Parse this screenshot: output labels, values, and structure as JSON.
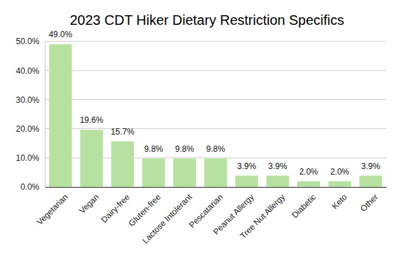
{
  "chart_data": {
    "type": "bar",
    "title": "2023 CDT Hiker Dietary Restriction Specifics",
    "categories": [
      "Vegetarian",
      "Vegan",
      "Dairy-free",
      "Gluten-free",
      "Lactose Intolerant",
      "Pescatarian",
      "Peanut Allergy",
      "Tree Nut Allergy",
      "Diabetic",
      "Keto",
      "Other"
    ],
    "values": [
      49.0,
      19.6,
      15.7,
      9.8,
      9.8,
      9.8,
      3.9,
      3.9,
      2.0,
      2.0,
      3.9
    ],
    "value_labels": [
      "49.0%",
      "19.6%",
      "15.7%",
      "9.8%",
      "9.8%",
      "9.8%",
      "3.9%",
      "3.9%",
      "2.0%",
      "2.0%",
      "3.9%"
    ],
    "color": "#b7e1a1",
    "ylim": [
      0,
      50
    ],
    "yticks": [
      {
        "value": 0,
        "label": "0.0%"
      },
      {
        "value": 10,
        "label": "10.0%"
      },
      {
        "value": 20,
        "label": "20.0%"
      },
      {
        "value": 30,
        "label": "30.0%"
      },
      {
        "value": 40,
        "label": "40.0%"
      },
      {
        "value": 50,
        "label": "50.0%"
      }
    ],
    "grid": true,
    "data_labels": true
  }
}
